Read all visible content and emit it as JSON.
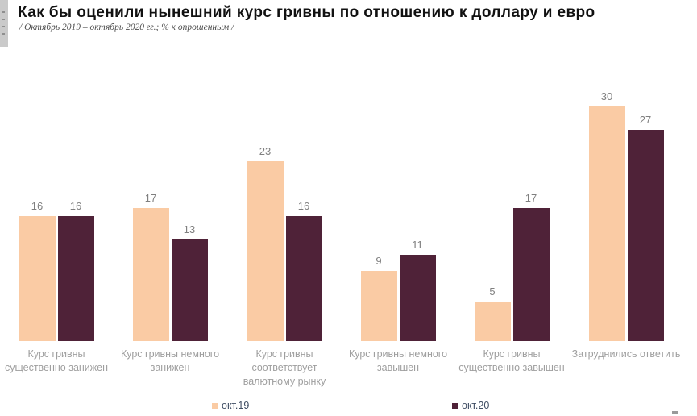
{
  "header": {
    "title": "Как бы оценили нынешний курс гривны по отношению к доллару и евро",
    "subtitle": "/ Октябрь 2019 – октябрь 2020 гг.; % к опрошенным /"
  },
  "chart_data": {
    "type": "bar",
    "title": "Как бы оценили нынешний курс гривны по отношению к доллару и евро",
    "subtitle": "/ Октябрь 2019 – октябрь 2020 гг.; % к опрошенным /",
    "unit": "% к опрошенным",
    "categories": [
      "Курс гривны\nсущественно занижен",
      "Курс гривны немного\nзанижен",
      "Курс гривны\nсоответствует\nвалютному рынку",
      "Курс гривны немного\nзавышен",
      "Курс гривны\nсущественно завышен",
      "Затруднились ответить"
    ],
    "series": [
      {
        "name": "окт.19",
        "color": "#FACBA4",
        "values": [
          16,
          17,
          23,
          9,
          5,
          30
        ]
      },
      {
        "name": "окт.20",
        "color": "#4F2238",
        "values": [
          16,
          13,
          16,
          11,
          17,
          27
        ]
      }
    ],
    "ylim": [
      0,
      35
    ],
    "grid": false,
    "axis_lines": false,
    "value_labels_shown": true,
    "legend_position": "bottom",
    "colors": {
      "value_label": "#7f7f7f",
      "category_label": "#9e9e9e",
      "legend_text": "#3f4d63",
      "title_text": "#111111",
      "subtitle_text": "#4d4d4d"
    }
  }
}
